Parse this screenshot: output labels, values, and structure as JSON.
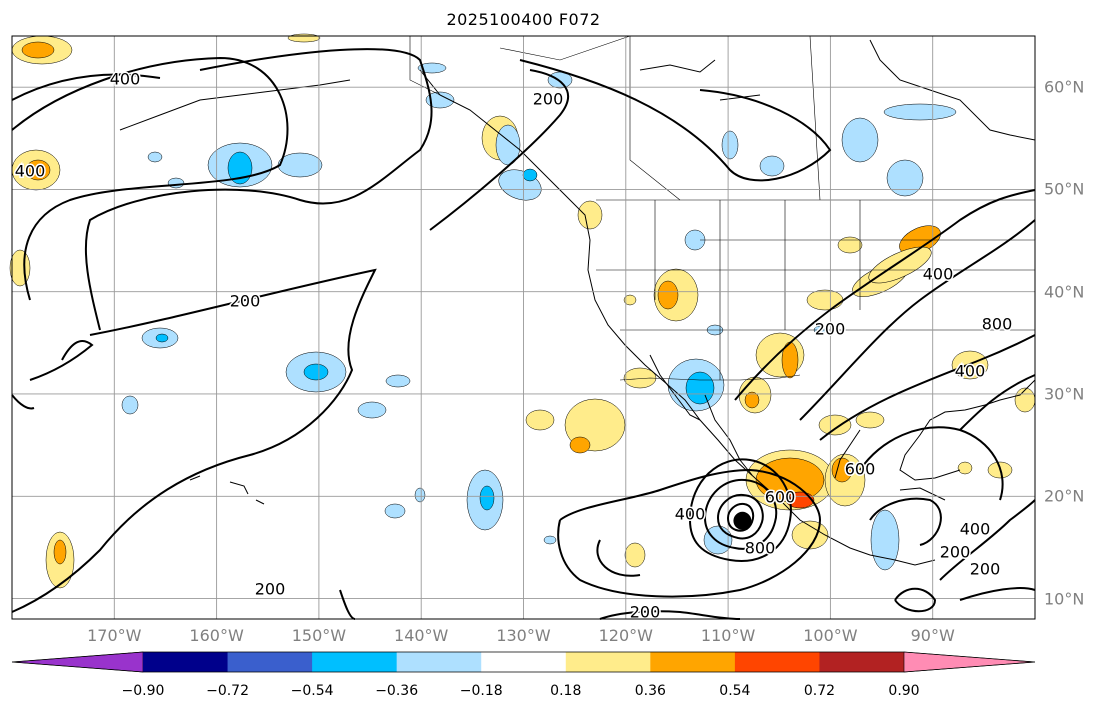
{
  "title": "2025100400 F072",
  "map": {
    "lon_min": -180,
    "lon_max": -80,
    "lat_min": 8,
    "lat_max": 65,
    "lon_labels": [
      {
        "lon": -170,
        "text": "170°W"
      },
      {
        "lon": -160,
        "text": "160°W"
      },
      {
        "lon": -150,
        "text": "150°W"
      },
      {
        "lon": -140,
        "text": "140°W"
      },
      {
        "lon": -130,
        "text": "130°W"
      },
      {
        "lon": -120,
        "text": "120°W"
      },
      {
        "lon": -110,
        "text": "110°W"
      },
      {
        "lon": -100,
        "text": "100°W"
      },
      {
        "lon": -90,
        "text": "90°W"
      }
    ],
    "lat_labels": [
      {
        "lat": 60,
        "text": "60°N"
      },
      {
        "lat": 50,
        "text": "50°N"
      },
      {
        "lat": 40,
        "text": "40°N"
      },
      {
        "lat": 30,
        "text": "30°N"
      },
      {
        "lat": 20,
        "text": "20°N"
      },
      {
        "lat": 10,
        "text": "10°N"
      }
    ],
    "contour_labels": [
      "400",
      "200",
      "800",
      "600"
    ],
    "storm_center": {
      "lon": -108.6,
      "lat": 17.6
    }
  },
  "colorbar": {
    "colors": [
      "#9933cc",
      "#00008b",
      "#3a5fcd",
      "#00bfff",
      "#aee0ff",
      "#ffffff",
      "#ffec8b",
      "#ffa500",
      "#ff4500",
      "#b22222",
      "#ff8cb4"
    ],
    "ticks": [
      "−0.90",
      "−0.72",
      "−0.54",
      "−0.36",
      "−0.18",
      "0.18",
      "0.36",
      "0.54",
      "0.72",
      "0.90"
    ]
  }
}
